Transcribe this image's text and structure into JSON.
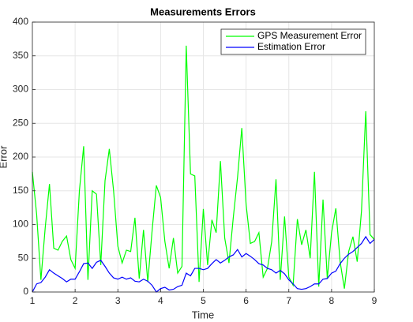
{
  "chart_data": {
    "type": "line",
    "title": "Measurements Errors",
    "x_label": "Time",
    "y_label": "Error",
    "x": [
      1,
      1.1,
      1.2,
      1.3,
      1.4,
      1.5,
      1.6,
      1.7,
      1.8,
      1.9,
      2,
      2.1,
      2.2,
      2.3,
      2.4,
      2.5,
      2.6,
      2.7,
      2.8,
      2.9,
      3,
      3.1,
      3.2,
      3.3,
      3.4,
      3.5,
      3.6,
      3.7,
      3.8,
      3.9,
      4,
      4.1,
      4.2,
      4.3,
      4.4,
      4.5,
      4.6,
      4.7,
      4.8,
      4.9,
      5,
      5.1,
      5.2,
      5.3,
      5.4,
      5.5,
      5.6,
      5.7,
      5.8,
      5.9,
      6,
      6.1,
      6.2,
      6.3,
      6.4,
      6.5,
      6.6,
      6.7,
      6.8,
      6.9,
      7,
      7.1,
      7.2,
      7.3,
      7.4,
      7.5,
      7.6,
      7.7,
      7.8,
      7.9,
      8,
      8.1,
      8.2,
      8.3,
      8.4,
      8.5,
      8.6,
      8.7,
      8.8,
      8.9,
      9
    ],
    "series": [
      {
        "name": "GPS Measurement Error",
        "color": "#00ff00",
        "values": [
          178,
          115,
          18,
          95,
          160,
          65,
          62,
          75,
          83,
          48,
          35,
          150,
          216,
          18,
          150,
          145,
          40,
          165,
          212,
          150,
          68,
          43,
          62,
          60,
          110,
          20,
          92,
          15,
          90,
          158,
          140,
          75,
          35,
          80,
          28,
          38,
          365,
          175,
          172,
          15,
          123,
          40,
          107,
          88,
          194,
          80,
          43,
          110,
          170,
          243,
          130,
          72,
          75,
          88,
          22,
          35,
          75,
          167,
          18,
          112,
          22,
          10,
          108,
          70,
          92,
          50,
          178,
          8,
          137,
          20,
          88,
          124,
          45,
          5,
          60,
          82,
          45,
          120,
          268,
          85,
          78
        ]
      },
      {
        "name": "Estimation Error",
        "color": "#0000ff",
        "values": [
          0,
          12,
          14,
          22,
          33,
          28,
          24,
          20,
          15,
          19,
          19,
          30,
          42,
          43,
          35,
          44,
          47,
          38,
          28,
          21,
          19,
          22,
          19,
          21,
          16,
          15,
          19,
          16,
          10,
          0,
          5,
          7,
          3,
          4,
          8,
          10,
          28,
          24,
          35,
          35,
          33,
          35,
          42,
          48,
          43,
          47,
          52,
          55,
          63,
          52,
          57,
          53,
          48,
          42,
          40,
          35,
          33,
          28,
          32,
          27,
          18,
          12,
          5,
          4,
          5,
          8,
          12,
          12,
          19,
          20,
          28,
          31,
          42,
          50,
          56,
          60,
          66,
          72,
          82,
          72,
          78
        ]
      }
    ],
    "xlim": [
      1,
      9
    ],
    "xticks": [
      1,
      2,
      3,
      4,
      5,
      6,
      7,
      8,
      9
    ],
    "ylim": [
      0,
      400
    ],
    "yticks": [
      0,
      50,
      100,
      150,
      200,
      250,
      300,
      350,
      400
    ],
    "grid": true,
    "legend": "top-right"
  }
}
